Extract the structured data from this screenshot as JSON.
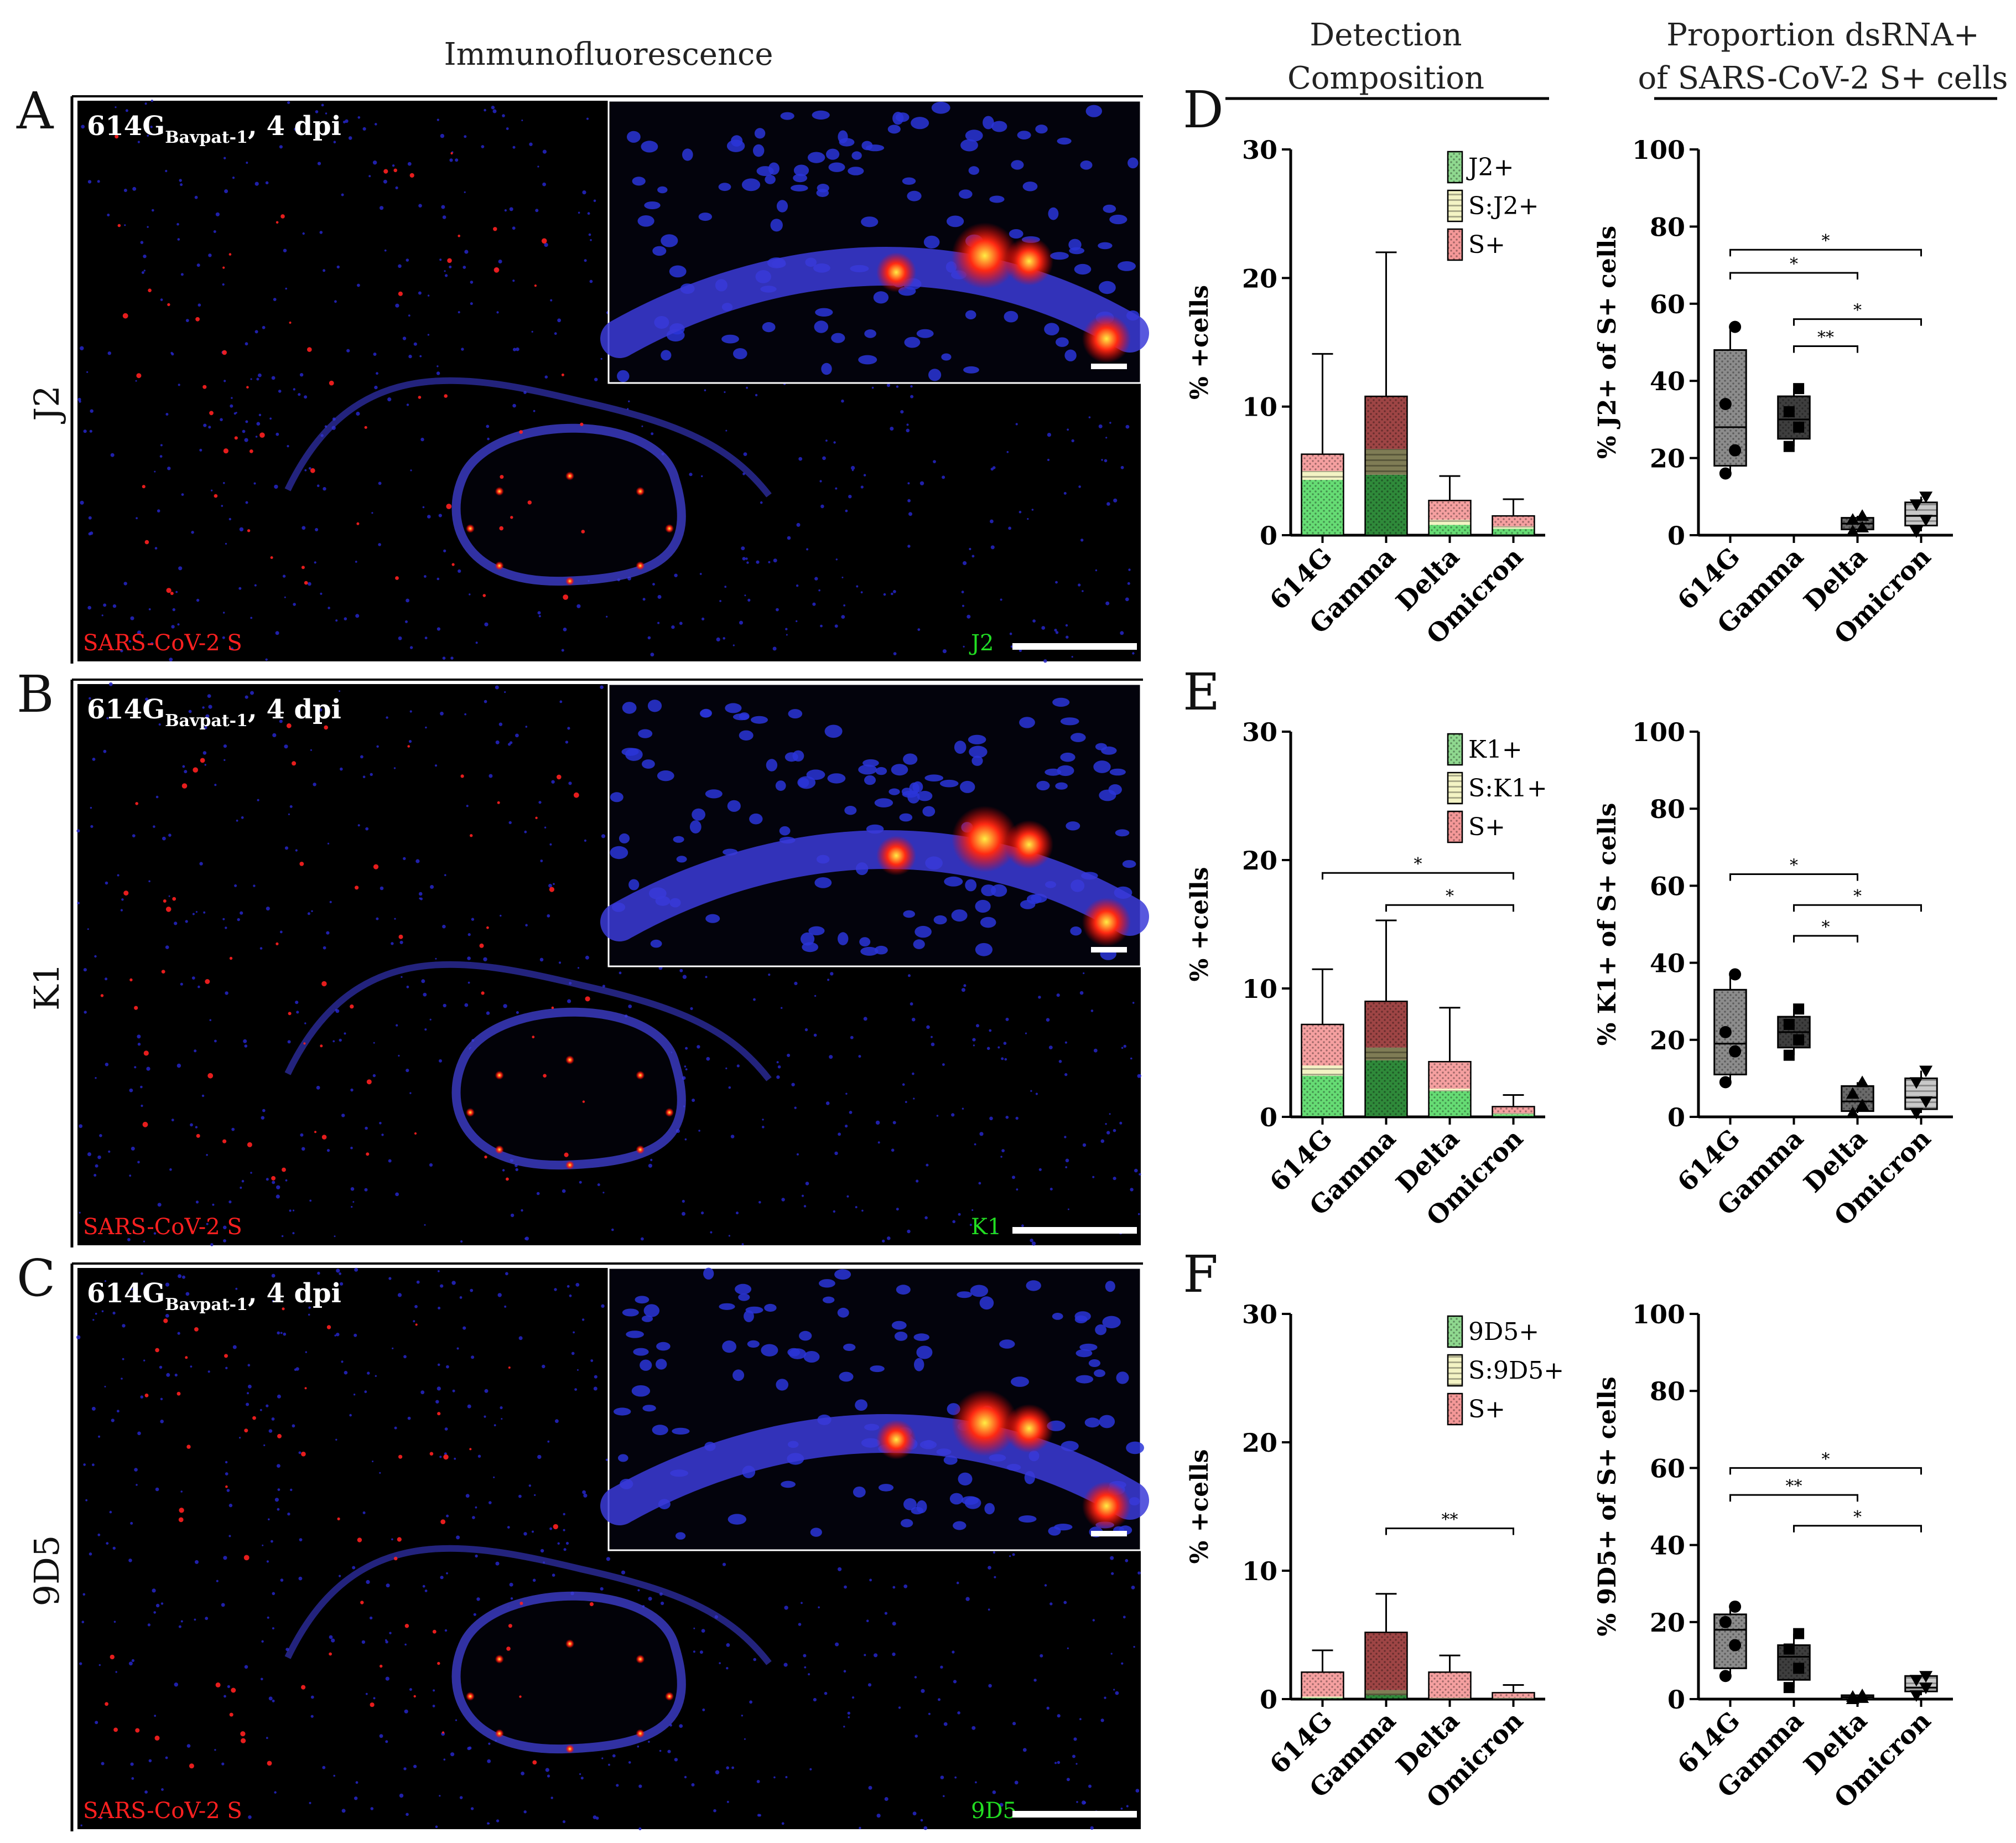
{
  "headers": {
    "immunofluorescence": "Immunofluorescence",
    "composition": [
      "Detection",
      "Composition"
    ],
    "proportion": [
      "Proportion dsRNA+",
      "of SARS-CoV-2 S+ cells"
    ]
  },
  "colors": {
    "s_red": "#ff2020",
    "green": "#22dd22",
    "nuclei_blue": "#2626c8",
    "legend_green": "#8fd88f",
    "legend_yellow": "#f3f3c4",
    "legend_red": "#f49898"
  },
  "micrographs": [
    {
      "letter": "A",
      "row_label": "J2",
      "title_main": "614G",
      "title_sub": "Bavpat-1",
      "title_tail": ", 4 dpi",
      "left_label": "SARS-CoV-2 S",
      "right_label": "J2"
    },
    {
      "letter": "B",
      "row_label": "K1",
      "title_main": "614G",
      "title_sub": "Bavpat-1",
      "title_tail": ", 4 dpi",
      "left_label": "SARS-CoV-2 S",
      "right_label": "K1"
    },
    {
      "letter": "C",
      "row_label": "9D5",
      "title_main": "614G",
      "title_sub": "Bavpat-1",
      "title_tail": ", 4 dpi",
      "left_label": "SARS-CoV-2 S",
      "right_label": "9D5"
    }
  ],
  "chart_data": [
    {
      "panel": "D",
      "type": "bar",
      "stacked": true,
      "ylabel": "% +cells",
      "ylim": [
        0,
        30
      ],
      "yticks": [
        0,
        10,
        20,
        30
      ],
      "categories": [
        "614G",
        "Gamma",
        "Delta",
        "Omicron"
      ],
      "series": [
        {
          "name": "J2+",
          "values": [
            4.3,
            4.7,
            0.8,
            0.5
          ]
        },
        {
          "name": "S:J2+",
          "values": [
            0.7,
            2.0,
            0.4,
            0.2
          ]
        },
        {
          "name": "S+",
          "values": [
            1.3,
            4.1,
            1.5,
            0.8
          ]
        }
      ],
      "error_tops": [
        14.1,
        22.0,
        4.6,
        2.8
      ],
      "significance": []
    },
    {
      "panel": "D",
      "type": "box",
      "ylabel": "% J2+ of S+ cells",
      "ylim": [
        0,
        100
      ],
      "yticks": [
        0,
        20,
        40,
        60,
        80,
        100
      ],
      "categories": [
        "614G",
        "Gamma",
        "Delta",
        "Omicron"
      ],
      "boxes": [
        {
          "min": 16,
          "q1": 18,
          "median": 28,
          "q3": 48,
          "max": 54,
          "points": [
            16,
            22,
            34,
            54
          ]
        },
        {
          "min": 23,
          "q1": 25,
          "median": 30,
          "q3": 36,
          "max": 38,
          "points": [
            23,
            28,
            32,
            38
          ]
        },
        {
          "min": 1,
          "q1": 1.5,
          "median": 3,
          "q3": 4.5,
          "max": 5,
          "points": [
            1,
            2,
            4,
            5
          ]
        },
        {
          "min": 1,
          "q1": 2.5,
          "median": 5,
          "q3": 8.5,
          "max": 10,
          "points": [
            1,
            4,
            8,
            10
          ]
        }
      ],
      "significance": [
        {
          "from": 0,
          "to": 3,
          "y": 74,
          "label": "*"
        },
        {
          "from": 0,
          "to": 2,
          "y": 68,
          "label": "*"
        },
        {
          "from": 1,
          "to": 3,
          "y": 56,
          "label": "*"
        },
        {
          "from": 1,
          "to": 2,
          "y": 49,
          "label": "**"
        }
      ]
    },
    {
      "panel": "E",
      "type": "bar",
      "stacked": true,
      "ylabel": "% +cells",
      "ylim": [
        0,
        30
      ],
      "yticks": [
        0,
        10,
        20,
        30
      ],
      "categories": [
        "614G",
        "Gamma",
        "Delta",
        "Omicron"
      ],
      "series": [
        {
          "name": "K1+",
          "values": [
            3.2,
            4.4,
            2.0,
            0.2
          ]
        },
        {
          "name": "S:K1+",
          "values": [
            0.8,
            1.0,
            0.2,
            0.1
          ]
        },
        {
          "name": "S+",
          "values": [
            3.2,
            3.6,
            2.1,
            0.5
          ]
        }
      ],
      "error_tops": [
        11.5,
        15.3,
        8.5,
        1.7
      ],
      "significance": [
        {
          "from": 0,
          "to": 3,
          "y": 19,
          "label": "*"
        },
        {
          "from": 1,
          "to": 3,
          "y": 16.5,
          "label": "*"
        }
      ]
    },
    {
      "panel": "E",
      "type": "box",
      "ylabel": "% K1+ of S+ cells",
      "ylim": [
        0,
        100
      ],
      "yticks": [
        0,
        20,
        40,
        60,
        80,
        100
      ],
      "categories": [
        "614G",
        "Gamma",
        "Delta",
        "Omicron"
      ],
      "boxes": [
        {
          "min": 9,
          "q1": 11,
          "median": 19,
          "q3": 33,
          "max": 37,
          "points": [
            9,
            17,
            22,
            37
          ]
        },
        {
          "min": 16,
          "q1": 18,
          "median": 22,
          "q3": 26,
          "max": 28,
          "points": [
            16,
            20,
            24,
            28
          ]
        },
        {
          "min": 1,
          "q1": 1.5,
          "median": 4,
          "q3": 8,
          "max": 9,
          "points": [
            1,
            3,
            6,
            9
          ]
        },
        {
          "min": 1,
          "q1": 2,
          "median": 5,
          "q3": 10,
          "max": 12,
          "points": [
            1,
            4,
            9,
            12
          ]
        }
      ],
      "significance": [
        {
          "from": 0,
          "to": 2,
          "y": 63,
          "label": "*"
        },
        {
          "from": 1,
          "to": 3,
          "y": 55,
          "label": "*"
        },
        {
          "from": 1,
          "to": 2,
          "y": 47,
          "label": "*"
        }
      ]
    },
    {
      "panel": "F",
      "type": "bar",
      "stacked": true,
      "ylabel": "% +cells",
      "ylim": [
        0,
        30
      ],
      "yticks": [
        0,
        10,
        20,
        30
      ],
      "categories": [
        "614G",
        "Gamma",
        "Delta",
        "Omicron"
      ],
      "series": [
        {
          "name": "9D5+",
          "values": [
            0.1,
            0.3,
            0.05,
            0.05
          ]
        },
        {
          "name": "S:9D5+",
          "values": [
            0.1,
            0.4,
            0.05,
            0.05
          ]
        },
        {
          "name": "S+",
          "values": [
            1.9,
            4.5,
            2.0,
            0.4
          ]
        }
      ],
      "error_tops": [
        3.8,
        8.2,
        3.4,
        1.1
      ],
      "significance": [
        {
          "from": 1,
          "to": 3,
          "y": 13.3,
          "label": "**"
        }
      ]
    },
    {
      "panel": "F",
      "type": "box",
      "ylabel": "% 9D5+ of S+ cells",
      "ylim": [
        0,
        100
      ],
      "yticks": [
        0,
        20,
        40,
        60,
        80,
        100
      ],
      "categories": [
        "614G",
        "Gamma",
        "Delta",
        "Omicron"
      ],
      "boxes": [
        {
          "min": 6,
          "q1": 8,
          "median": 18,
          "q3": 22,
          "max": 24,
          "points": [
            6,
            14,
            20,
            24
          ]
        },
        {
          "min": 3,
          "q1": 5,
          "median": 11,
          "q3": 14,
          "max": 17,
          "points": [
            3,
            8,
            13,
            17
          ]
        },
        {
          "min": 0,
          "q1": 0,
          "median": 0.5,
          "q3": 1,
          "max": 1,
          "points": [
            0,
            0.3,
            0.6,
            1
          ]
        },
        {
          "min": 1,
          "q1": 2,
          "median": 3,
          "q3": 6,
          "max": 6,
          "points": [
            1,
            3,
            5,
            6
          ]
        }
      ],
      "significance": [
        {
          "from": 0,
          "to": 3,
          "y": 60,
          "label": "*"
        },
        {
          "from": 0,
          "to": 2,
          "y": 53,
          "label": "**"
        },
        {
          "from": 1,
          "to": 3,
          "y": 45,
          "label": "*"
        }
      ]
    }
  ]
}
